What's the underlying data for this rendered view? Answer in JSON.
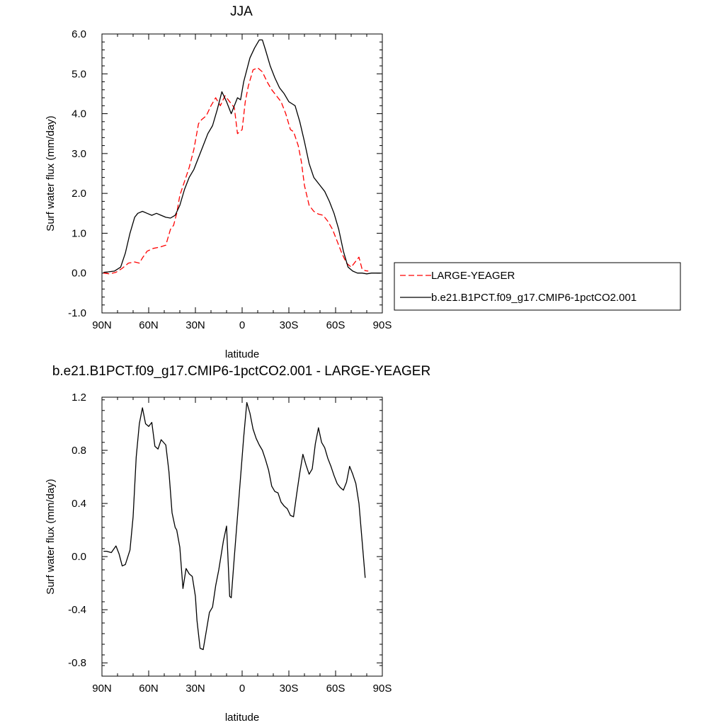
{
  "chart_data": [
    {
      "type": "line",
      "title": "JJA",
      "xlabel": "latitude",
      "ylabel": "Surf water flux (mm/day)",
      "xlim": [
        90,
        -90
      ],
      "ylim": [
        -1.0,
        6.0
      ],
      "x_ticks": [
        90,
        60,
        30,
        0,
        -30,
        -60,
        -90
      ],
      "x_tick_labels": [
        "90N",
        "60N",
        "30N",
        "0",
        "30S",
        "60S",
        "90S"
      ],
      "y_ticks": [
        -1.0,
        0.0,
        1.0,
        2.0,
        3.0,
        4.0,
        5.0,
        6.0
      ],
      "y_tick_labels": [
        "-1.0",
        "0.0",
        "1.0",
        "2.0",
        "3.0",
        "4.0",
        "5.0",
        "6.0"
      ],
      "grid": false,
      "legend_placement": "right",
      "series": [
        {
          "name": "LARGE-YEAGER",
          "color": "#ff0000",
          "dash": "dashed",
          "x": [
            89,
            85,
            81,
            77,
            73,
            69,
            66,
            64,
            61,
            57,
            53,
            49,
            46,
            44,
            42,
            40,
            37,
            34,
            31,
            28,
            26,
            23,
            20,
            17,
            14,
            11,
            8,
            5,
            3,
            0,
            -2,
            -4,
            -7,
            -10,
            -13,
            -16,
            -19,
            -22,
            -25,
            -28,
            -31,
            -33,
            -36,
            -38,
            -40,
            -43,
            -46,
            -49,
            -52,
            -55,
            -58,
            -61,
            -64,
            -67,
            -70,
            -73,
            -75,
            -77,
            -79,
            -81
          ],
          "y": [
            0.0,
            -0.02,
            0.02,
            0.12,
            0.25,
            0.28,
            0.25,
            0.38,
            0.55,
            0.62,
            0.65,
            0.7,
            1.1,
            1.2,
            1.5,
            1.95,
            2.3,
            2.65,
            3.1,
            3.75,
            3.85,
            3.95,
            4.2,
            4.4,
            4.2,
            4.45,
            4.3,
            4.15,
            3.5,
            3.6,
            4.3,
            4.7,
            5.1,
            5.15,
            5.05,
            4.8,
            4.6,
            4.45,
            4.3,
            4.0,
            3.6,
            3.55,
            3.2,
            2.8,
            2.2,
            1.7,
            1.55,
            1.48,
            1.45,
            1.3,
            1.1,
            0.8,
            0.5,
            0.25,
            0.15,
            0.3,
            0.4,
            0.1,
            0.06,
            0.05
          ]
        },
        {
          "name": "b.e21.B1PCT.f09_g17.CMIP6-1pctCO2.001",
          "color": "#000000",
          "dash": "solid",
          "x": [
            89,
            86,
            82,
            78,
            75,
            72,
            69,
            67,
            64,
            61,
            58,
            55,
            52,
            49,
            46,
            43,
            40,
            37,
            34,
            31,
            28,
            25,
            22,
            19,
            16,
            13,
            10,
            7,
            5,
            3,
            1,
            -1,
            -3,
            -5,
            -8,
            -11,
            -13,
            -15,
            -18,
            -21,
            -24,
            -27,
            -30,
            -32,
            -34,
            -37,
            -40,
            -43,
            -46,
            -50,
            -53,
            -56,
            -59,
            -62,
            -65,
            -68,
            -71,
            -74,
            -77,
            -80,
            -83,
            -86,
            -89
          ],
          "y": [
            0.02,
            0.03,
            0.05,
            0.15,
            0.5,
            1.0,
            1.4,
            1.5,
            1.55,
            1.5,
            1.45,
            1.5,
            1.45,
            1.4,
            1.38,
            1.45,
            1.7,
            2.1,
            2.4,
            2.6,
            2.9,
            3.2,
            3.5,
            3.7,
            4.1,
            4.55,
            4.3,
            4.0,
            4.2,
            4.4,
            4.35,
            4.8,
            5.1,
            5.4,
            5.65,
            5.85,
            5.85,
            5.6,
            5.2,
            4.9,
            4.65,
            4.5,
            4.3,
            4.25,
            4.2,
            3.8,
            3.3,
            2.75,
            2.4,
            2.2,
            2.05,
            1.8,
            1.5,
            1.1,
            0.55,
            0.15,
            0.05,
            0.0,
            0.0,
            -0.02,
            0.0,
            0.0,
            0.0
          ]
        }
      ]
    },
    {
      "type": "line",
      "title": "b.e21.B1PCT.f09_g17.CMIP6-1pctCO2.001 - LARGE-YEAGER",
      "xlabel": "latitude",
      "ylabel": "Surf water flux (mm/day)",
      "xlim": [
        90,
        -90
      ],
      "ylim": [
        -0.9,
        1.2
      ],
      "x_ticks": [
        90,
        60,
        30,
        0,
        -30,
        -60,
        -90
      ],
      "x_tick_labels": [
        "90N",
        "60N",
        "30N",
        "0",
        "30S",
        "60S",
        "90S"
      ],
      "y_ticks": [
        -0.8,
        -0.4,
        0.0,
        0.4,
        0.8,
        1.2
      ],
      "y_tick_labels": [
        "-0.8",
        "-0.4",
        "0.0",
        "0.4",
        "0.8",
        "1.2"
      ],
      "grid": false,
      "series": [
        {
          "color": "#000000",
          "dash": "solid",
          "x": [
            89,
            87,
            84,
            81,
            79,
            77,
            75,
            72,
            70,
            68,
            66,
            64,
            62,
            60,
            58,
            56,
            54,
            52,
            49,
            47,
            45,
            43,
            42,
            40,
            38,
            36,
            34,
            32,
            30,
            29,
            27,
            25,
            23,
            21,
            19,
            17,
            15,
            12,
            10,
            8,
            7,
            5,
            3,
            1,
            -1,
            -3,
            -5,
            -7,
            -9,
            -11,
            -13,
            -15,
            -17,
            -19,
            -21,
            -23,
            -25,
            -27,
            -29,
            -31,
            -33,
            -35,
            -37,
            -39,
            -41,
            -43,
            -45,
            -47,
            -49,
            -51,
            -53,
            -55,
            -57,
            -59,
            -61,
            -63,
            -65,
            -67,
            -69,
            -71,
            -73,
            -75,
            -77,
            -79
          ],
          "y": [
            0.04,
            0.04,
            0.03,
            0.08,
            0.02,
            -0.07,
            -0.06,
            0.05,
            0.3,
            0.75,
            1.0,
            1.12,
            1.0,
            0.98,
            1.01,
            0.83,
            0.81,
            0.88,
            0.84,
            0.64,
            0.33,
            0.22,
            0.2,
            0.07,
            -0.24,
            -0.09,
            -0.13,
            -0.15,
            -0.3,
            -0.48,
            -0.69,
            -0.7,
            -0.56,
            -0.42,
            -0.38,
            -0.22,
            -0.1,
            0.12,
            0.23,
            -0.3,
            -0.31,
            0.0,
            0.3,
            0.6,
            0.9,
            1.16,
            1.08,
            0.96,
            0.89,
            0.84,
            0.8,
            0.73,
            0.65,
            0.53,
            0.49,
            0.48,
            0.41,
            0.38,
            0.36,
            0.31,
            0.3,
            0.47,
            0.63,
            0.77,
            0.69,
            0.62,
            0.66,
            0.85,
            0.97,
            0.86,
            0.82,
            0.74,
            0.68,
            0.61,
            0.55,
            0.52,
            0.5,
            0.56,
            0.68,
            0.62,
            0.55,
            0.4,
            0.12,
            -0.16
          ]
        }
      ]
    }
  ]
}
